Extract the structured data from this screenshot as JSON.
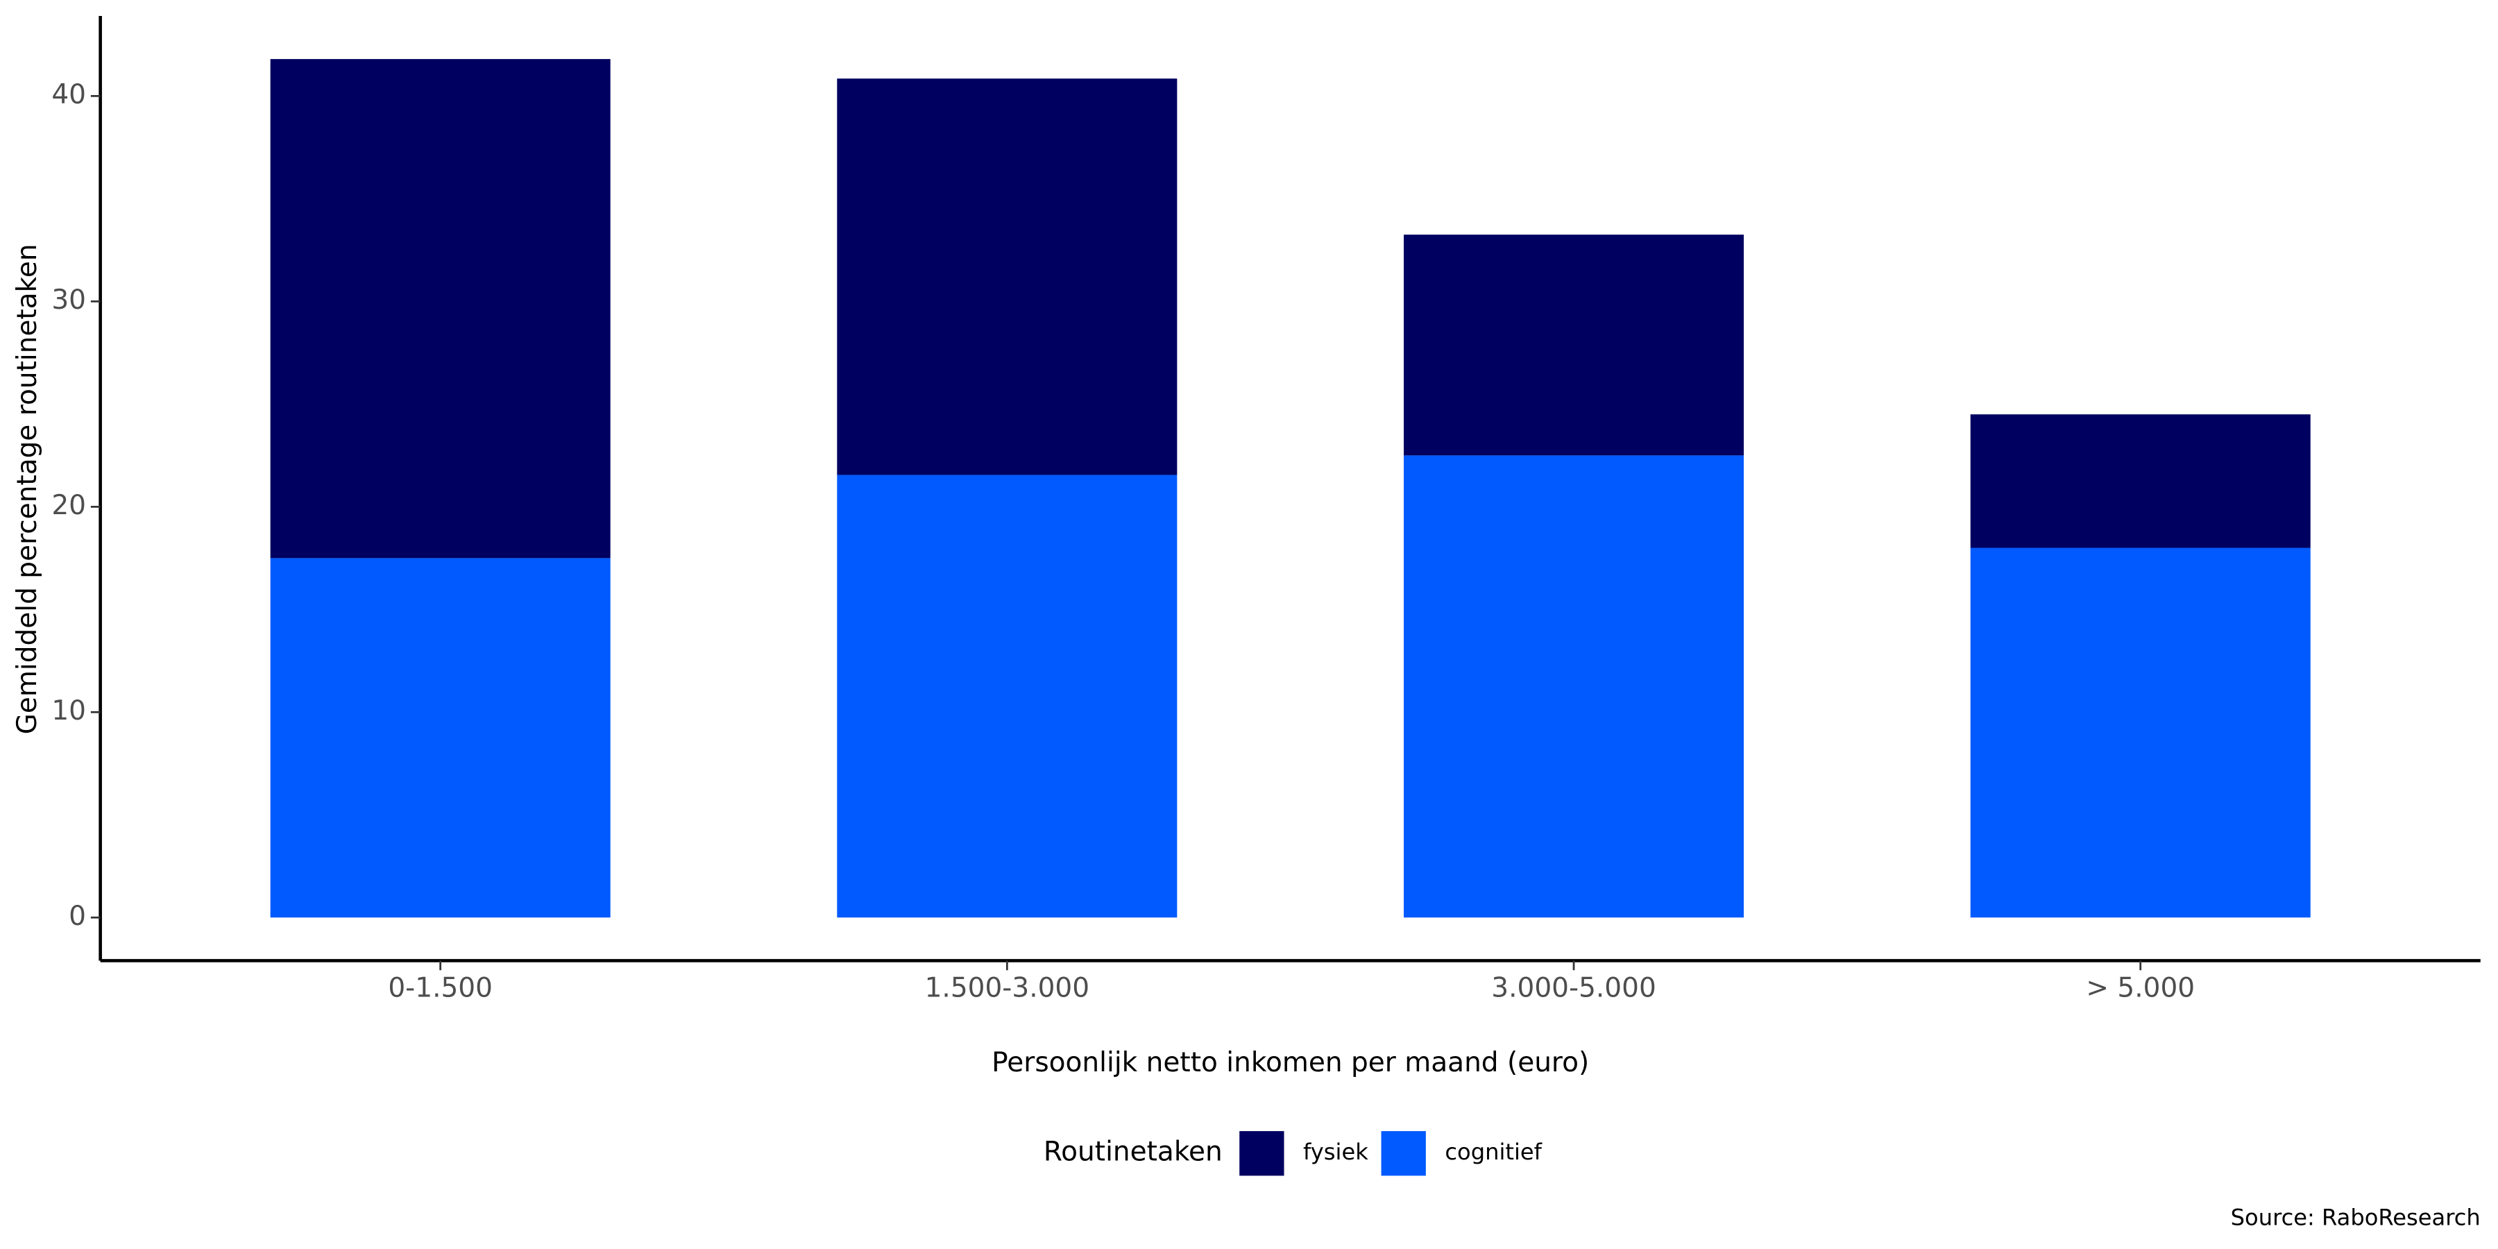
{
  "chart_data": {
    "type": "stacked_bar",
    "x_label": "Persoonlijk netto inkomen per maand (euro)",
    "y_label": "Gemiddeld percentage routinetaken",
    "categories": [
      "0-1.500",
      "1.500-3.000",
      "3.000-5.000",
      "> 5.000"
    ],
    "series": [
      {
        "name": "fysiek",
        "color": "#000060",
        "values": [
          24.3,
          19.3,
          10.75,
          6.5
        ]
      },
      {
        "name": "cognitief",
        "color": "#005aff",
        "values": [
          17.5,
          21.55,
          22.5,
          18.0
        ]
      }
    ],
    "legend_title": "Routinetaken",
    "ylim": [
      -2.1,
      43.9
    ],
    "yticks": [
      0,
      10,
      20,
      30,
      40
    ],
    "source": "Source: RaboResearch"
  }
}
